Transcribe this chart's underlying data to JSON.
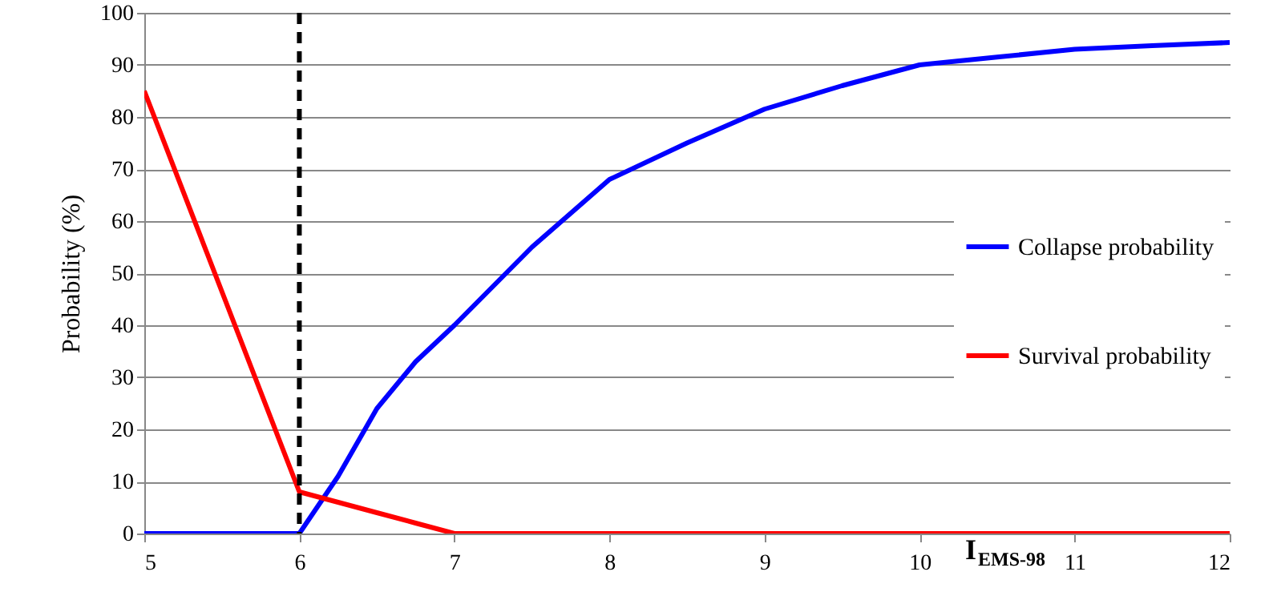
{
  "chart_data": {
    "type": "line",
    "xlabel": "I$_{EMS-98}$",
    "ylabel": "Probability (%)",
    "x": [
      5,
      6,
      6.25,
      6.5,
      6.75,
      7,
      7.5,
      8,
      8.5,
      9,
      9.5,
      10,
      10.5,
      11,
      11.5,
      12
    ],
    "series": [
      {
        "name": "Collapse probability",
        "color": "#0000ff",
        "values": [
          0,
          0,
          11,
          24,
          33,
          40,
          55,
          68,
          75,
          81.5,
          86,
          90,
          91.5,
          93,
          93.7,
          94.3
        ]
      },
      {
        "name": "Survival probability",
        "color": "#ff0000",
        "values": [
          85,
          8,
          6,
          4,
          2,
          0,
          0,
          0,
          0,
          0,
          0,
          0,
          0,
          0,
          0,
          0
        ]
      }
    ],
    "xlim": [
      5,
      12
    ],
    "xticks": [
      5,
      6,
      7,
      8,
      9,
      10,
      11,
      12
    ],
    "ylim": [
      0,
      100
    ],
    "yticks": [
      0,
      10,
      20,
      30,
      40,
      50,
      60,
      70,
      80,
      90,
      100
    ],
    "ref_lines": [
      {
        "axis": "x",
        "value": 6,
        "color": "#000000",
        "line_style": "dashed"
      }
    ],
    "grid": "y",
    "legend": "right",
    "marker": "none",
    "line_style": "solid"
  }
}
